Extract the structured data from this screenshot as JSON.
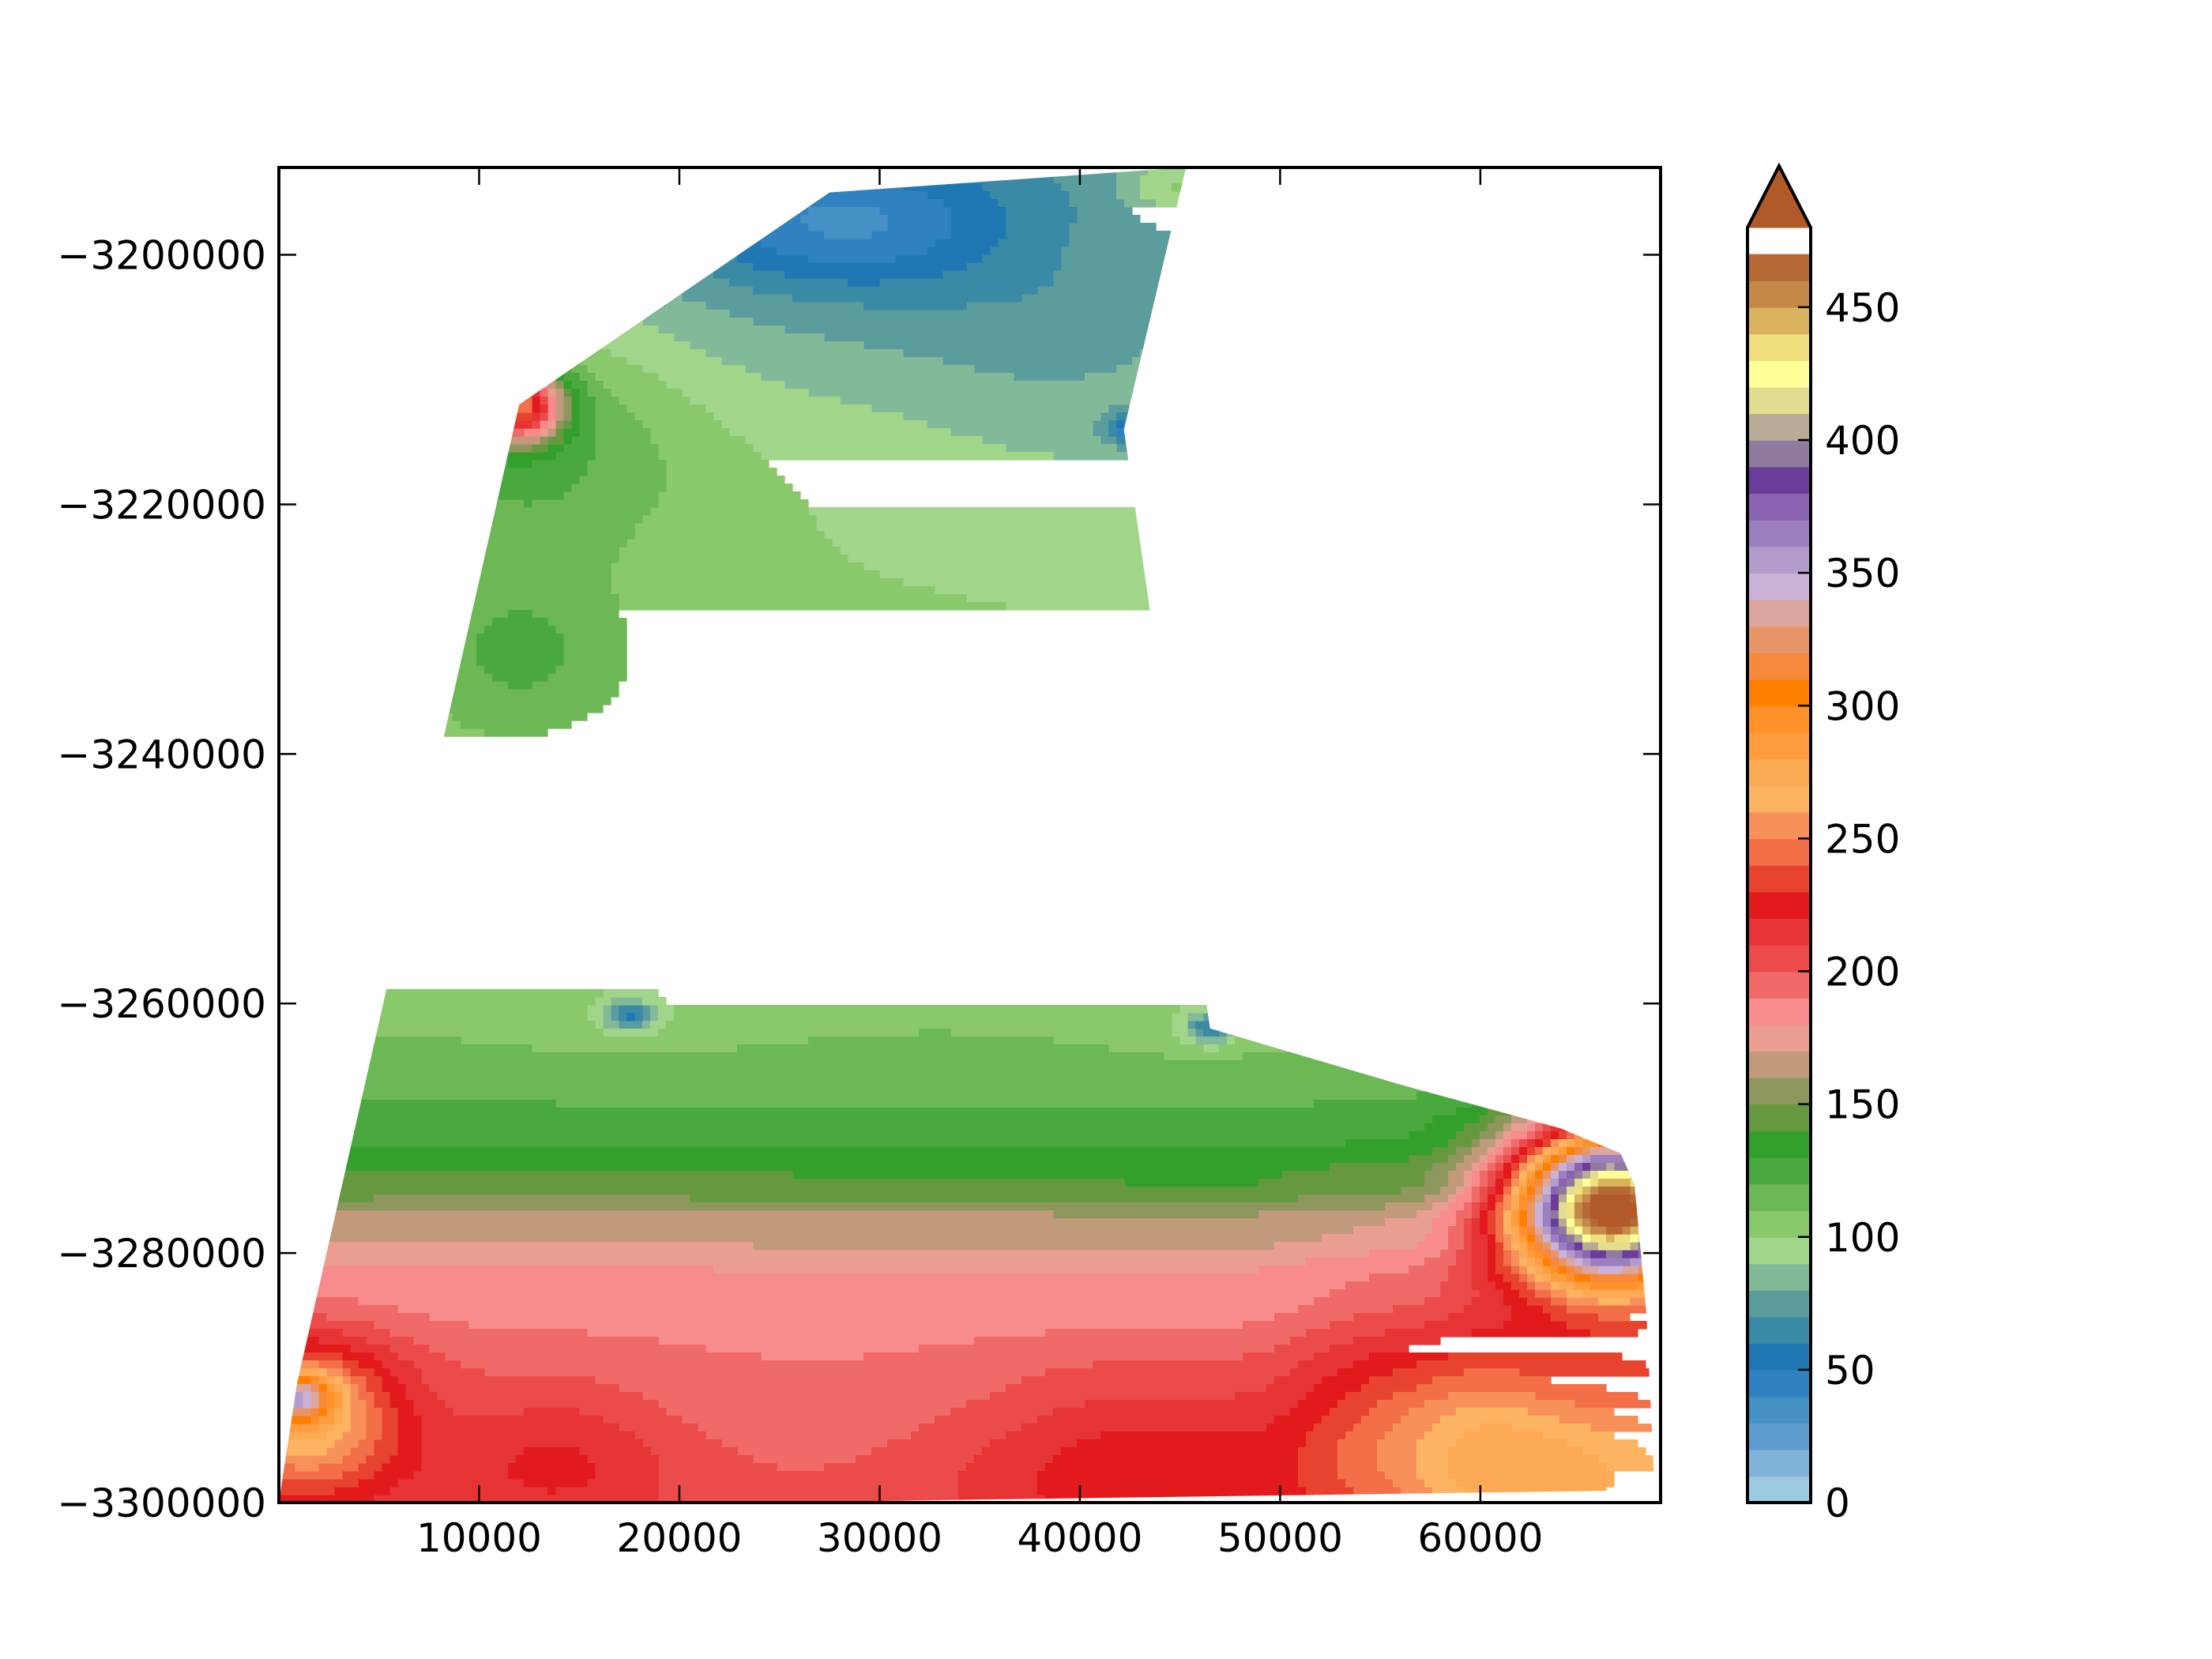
{
  "chart_data": {
    "type": "heatmap",
    "subtype": "filled-contour",
    "title": "",
    "xlabel": "",
    "ylabel": "",
    "xlim": [
      0,
      69000
    ],
    "ylim": [
      -3300000,
      -3193000
    ],
    "x_ticks": [
      10000,
      20000,
      30000,
      40000,
      50000,
      60000
    ],
    "y_ticks": [
      -3200000,
      -3220000,
      -3240000,
      -3260000,
      -3280000,
      -3300000
    ],
    "x_tick_labels": [
      "10000",
      "20000",
      "30000",
      "40000",
      "50000",
      "60000"
    ],
    "y_tick_labels": [
      "−3200000",
      "−3220000",
      "−3240000",
      "−3260000",
      "−3280000",
      "−3300000"
    ],
    "colorbar": {
      "vmin": 0,
      "vmax": 490,
      "extend": "max",
      "ticks": [
        0,
        50,
        100,
        150,
        200,
        250,
        300,
        350,
        400,
        450
      ],
      "tick_labels": [
        "0",
        "50",
        "100",
        "150",
        "200",
        "250",
        "300",
        "350",
        "400",
        "450"
      ],
      "levels": [
        {
          "from": 0,
          "to": 10,
          "color": "#9ecae1"
        },
        {
          "from": 10,
          "to": 20,
          "color": "#7fb3d8"
        },
        {
          "from": 20,
          "to": 30,
          "color": "#5e9cce"
        },
        {
          "from": 30,
          "to": 40,
          "color": "#4590c4"
        },
        {
          "from": 40,
          "to": 50,
          "color": "#2f82bf"
        },
        {
          "from": 50,
          "to": 60,
          "color": "#1f78b4"
        },
        {
          "from": 60,
          "to": 70,
          "color": "#3a8aa6"
        },
        {
          "from": 70,
          "to": 80,
          "color": "#5b9c9c"
        },
        {
          "from": 80,
          "to": 90,
          "color": "#82b999"
        },
        {
          "from": 90,
          "to": 100,
          "color": "#a1d58a"
        },
        {
          "from": 100,
          "to": 110,
          "color": "#8ac86c"
        },
        {
          "from": 110,
          "to": 120,
          "color": "#6bb855"
        },
        {
          "from": 120,
          "to": 130,
          "color": "#49a93f"
        },
        {
          "from": 130,
          "to": 140,
          "color": "#33a02c"
        },
        {
          "from": 140,
          "to": 150,
          "color": "#66993f"
        },
        {
          "from": 150,
          "to": 160,
          "color": "#8c965d"
        },
        {
          "from": 160,
          "to": 170,
          "color": "#c09a7a"
        },
        {
          "from": 170,
          "to": 180,
          "color": "#ea9e92"
        },
        {
          "from": 180,
          "to": 190,
          "color": "#f88b8b"
        },
        {
          "from": 190,
          "to": 200,
          "color": "#f06a6a"
        },
        {
          "from": 200,
          "to": 210,
          "color": "#ec4b4b"
        },
        {
          "from": 210,
          "to": 220,
          "color": "#e63434"
        },
        {
          "from": 220,
          "to": 230,
          "color": "#e31a1c"
        },
        {
          "from": 230,
          "to": 240,
          "color": "#e8432f"
        },
        {
          "from": 240,
          "to": 250,
          "color": "#f26f47"
        },
        {
          "from": 250,
          "to": 260,
          "color": "#f8905a"
        },
        {
          "from": 260,
          "to": 270,
          "color": "#fdb462"
        },
        {
          "from": 270,
          "to": 280,
          "color": "#fdaa55"
        },
        {
          "from": 280,
          "to": 290,
          "color": "#fd9d3f"
        },
        {
          "from": 290,
          "to": 300,
          "color": "#fe9129"
        },
        {
          "from": 300,
          "to": 310,
          "color": "#ff7f00"
        },
        {
          "from": 310,
          "to": 320,
          "color": "#f7893b"
        },
        {
          "from": 320,
          "to": 330,
          "color": "#e8956a"
        },
        {
          "from": 330,
          "to": 340,
          "color": "#dca79f"
        },
        {
          "from": 340,
          "to": 350,
          "color": "#cab2d6"
        },
        {
          "from": 350,
          "to": 360,
          "color": "#b29ccb"
        },
        {
          "from": 360,
          "to": 370,
          "color": "#9c7fbf"
        },
        {
          "from": 370,
          "to": 380,
          "color": "#8a63b1"
        },
        {
          "from": 380,
          "to": 390,
          "color": "#6a3d9a"
        },
        {
          "from": 390,
          "to": 400,
          "color": "#8f7b9e"
        },
        {
          "from": 400,
          "to": 410,
          "color": "#b9aa96"
        },
        {
          "from": 410,
          "to": 420,
          "color": "#e3dd91"
        },
        {
          "from": 420,
          "to": 430,
          "color": "#ffff99"
        },
        {
          "from": 430,
          "to": 440,
          "color": "#f0e07f"
        },
        {
          "from": 440,
          "to": 450,
          "color": "#dab35e"
        },
        {
          "from": 450,
          "to": 460,
          "color": "#c48948"
        },
        {
          "from": 460,
          "to": 470,
          "color": "#b56a36"
        },
        {
          "from": 470,
          "to": 490,
          "color": "#b15928"
        }
      ]
    },
    "domain_outline": [
      [
        0,
        -3300000
      ],
      [
        900,
        -3290500
      ],
      [
        12000,
        -3212000
      ],
      [
        27500,
        -3195000
      ],
      [
        45300,
        -3193000
      ],
      [
        42200,
        -3214000
      ],
      [
        46500,
        -3262000
      ],
      [
        56000,
        -3266500
      ],
      [
        64000,
        -3270000
      ],
      [
        67000,
        -3272000
      ],
      [
        67700,
        -3274500
      ],
      [
        68300,
        -3285000
      ],
      [
        68700,
        -3299000
      ],
      [
        24500,
        -3300000
      ]
    ],
    "field": {
      "base": 150,
      "y_trend": [
        [
          -3300000,
          200
        ],
        [
          -3290000,
          190
        ],
        [
          -3282000,
          180
        ],
        [
          -3278000,
          165
        ],
        [
          -3274000,
          140
        ],
        [
          -3270000,
          125
        ],
        [
          -3266000,
          115
        ],
        [
          -3260000,
          108
        ],
        [
          -3240000,
          103
        ],
        [
          -3220000,
          100
        ],
        [
          -3200000,
          88
        ],
        [
          -3193000,
          80
        ]
      ],
      "x_trend": [
        [
          0,
          0
        ],
        [
          10000,
          6
        ],
        [
          30000,
          0
        ],
        [
          48000,
          -2
        ],
        [
          55000,
          10
        ],
        [
          62000,
          28
        ],
        [
          69000,
          42
        ]
      ],
      "sources": [
        {
          "x": 66500,
          "y": -3276000,
          "amp": 320,
          "sx": 3300,
          "sy": 4200
        },
        {
          "x": 57000,
          "y": -3292000,
          "amp": 25,
          "sx": 5000,
          "sy": 5500
        },
        {
          "x": 62000,
          "y": -3297000,
          "amp": 45,
          "sx": 6000,
          "sy": 5000
        },
        {
          "x": 1200,
          "y": -3293000,
          "amp": 80,
          "sx": 3500,
          "sy": 4500
        },
        {
          "x": 800,
          "y": -3291500,
          "amp": 90,
          "sx": 1300,
          "sy": 1300
        },
        {
          "x": 14000,
          "y": -3296000,
          "amp": 20,
          "sx": 4000,
          "sy": 4000
        },
        {
          "x": 43000,
          "y": -3297000,
          "amp": 30,
          "sx": 6500,
          "sy": 6000
        },
        {
          "x": 12000,
          "y": -3212000,
          "amp": 130,
          "sx": 1500,
          "sy": 2000
        },
        {
          "x": 12500,
          "y": -3215000,
          "amp": 25,
          "sx": 5500,
          "sy": 7000
        },
        {
          "x": 12000,
          "y": -3232000,
          "amp": 20,
          "sx": 3800,
          "sy": 4500
        },
        {
          "x": 28000,
          "y": -3197500,
          "amp": -38,
          "sx": 6000,
          "sy": 3500
        },
        {
          "x": 30000,
          "y": -3202000,
          "amp": -12,
          "sx": 10000,
          "sy": 7000
        },
        {
          "x": 42500,
          "y": -3214000,
          "amp": -45,
          "sx": 900,
          "sy": 900
        },
        {
          "x": 40000,
          "y": -3210000,
          "amp": -10,
          "sx": 6000,
          "sy": 9000
        },
        {
          "x": 17500,
          "y": -3261000,
          "amp": -45,
          "sx": 900,
          "sy": 900
        },
        {
          "x": 17500,
          "y": -3259000,
          "amp": -6,
          "sx": 6000,
          "sy": 5000
        },
        {
          "x": 46500,
          "y": -3262000,
          "amp": -45,
          "sx": 900,
          "sy": 900
        },
        {
          "x": 46000,
          "y": -3258000,
          "amp": -6,
          "sx": 5000,
          "sy": 6000
        },
        {
          "x": 45000,
          "y": -3194500,
          "amp": 25,
          "sx": 2000,
          "sy": 1500
        }
      ]
    }
  }
}
